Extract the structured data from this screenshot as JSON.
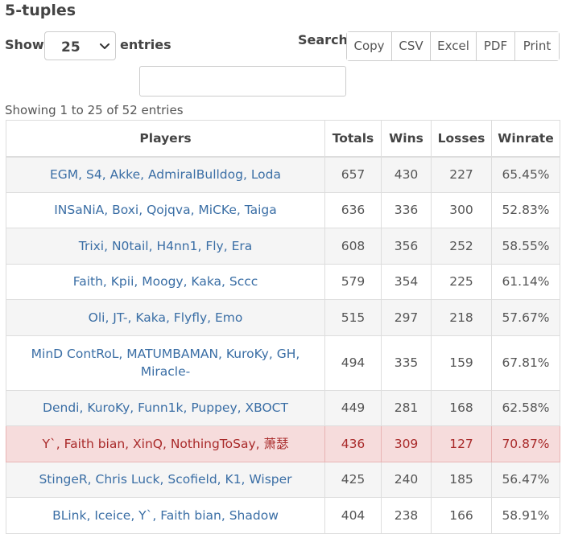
{
  "title": "5-tuples",
  "length_menu": {
    "show_label": "Show",
    "selected": "25",
    "entries_label": "entries"
  },
  "search": {
    "label": "Search:",
    "value": ""
  },
  "buttons": [
    "Copy",
    "CSV",
    "Excel",
    "PDF",
    "Print"
  ],
  "info": "Showing 1 to 25 of 52 entries",
  "table": {
    "headers": [
      "Players",
      "Totals",
      "Wins",
      "Losses",
      "Winrate"
    ],
    "rows": [
      {
        "players": "EGM, S4, Akke, AdmiralBulldog, Loda",
        "totals": "657",
        "wins": "430",
        "losses": "227",
        "winrate": "65.45%"
      },
      {
        "players": "INSaNiA, Boxi, Qojqva, MiCKe, Taiga",
        "totals": "636",
        "wins": "336",
        "losses": "300",
        "winrate": "52.83%"
      },
      {
        "players": "Trixi, N0tail, H4nn1, Fly, Era",
        "totals": "608",
        "wins": "356",
        "losses": "252",
        "winrate": "58.55%"
      },
      {
        "players": "Faith, Kpii, Moogy, Kaka, Sccc",
        "totals": "579",
        "wins": "354",
        "losses": "225",
        "winrate": "61.14%"
      },
      {
        "players": "Oli, JT-, Kaka, Flyfly, Emo",
        "totals": "515",
        "wins": "297",
        "losses": "218",
        "winrate": "57.67%"
      },
      {
        "players": "MinD ContRoL, MATUMBAMAN, KuroKy, GH, Miracle-",
        "totals": "494",
        "wins": "335",
        "losses": "159",
        "winrate": "67.81%"
      },
      {
        "players": "Dendi, KuroKy, Funn1k, Puppey, XBOCT",
        "totals": "449",
        "wins": "281",
        "losses": "168",
        "winrate": "62.58%"
      },
      {
        "players": "Y`, Faith bian, XinQ, NothingToSay, 萧瑟",
        "totals": "436",
        "wins": "309",
        "losses": "127",
        "winrate": "70.87%"
      },
      {
        "players": "StingeR, Chris Luck, Scofield, K1, Wisper",
        "totals": "425",
        "wins": "240",
        "losses": "185",
        "winrate": "56.47%"
      },
      {
        "players": "BLink, Iceice, Y`, Faith bian, Shadow",
        "totals": "404",
        "wins": "238",
        "losses": "166",
        "winrate": "58.91%"
      }
    ]
  }
}
